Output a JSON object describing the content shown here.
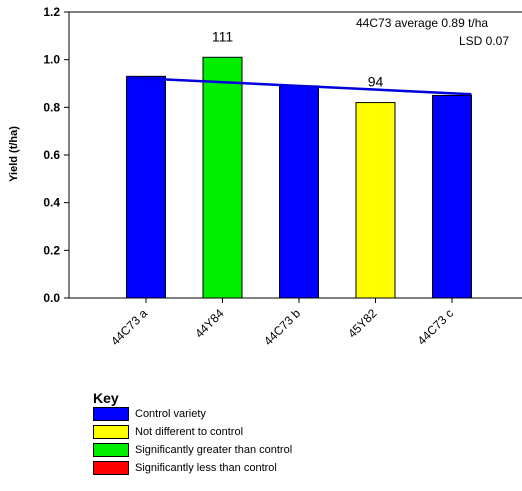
{
  "chart_data": {
    "type": "bar",
    "categories": [
      "44C73 a",
      "44Y84",
      "44C73 b",
      "45Y82",
      "44C73 c"
    ],
    "values": [
      0.93,
      1.01,
      0.89,
      0.82,
      0.85
    ],
    "bar_colors": [
      "#0000ff",
      "#00ee00",
      "#0000ff",
      "#ffff00",
      "#0000ff"
    ],
    "data_labels": [
      "",
      "111",
      "",
      "94",
      ""
    ],
    "trend_line": {
      "color": "#0000dd",
      "start": 0.925,
      "end": 0.855
    },
    "ylabel": "Yield (t/ha)",
    "ylim": [
      0,
      1.2
    ],
    "yticks": [
      "0.0",
      "0.2",
      "0.4",
      "0.6",
      "0.8",
      "1.0",
      "1.2"
    ],
    "annotations": [
      "44C73 average 0.89 t/ha",
      "LSD 0.07"
    ]
  },
  "key": {
    "title": "Key",
    "items": [
      {
        "color": "#0000ff",
        "label": "Control variety"
      },
      {
        "color": "#ffff00",
        "label": "Not different to control"
      },
      {
        "color": "#00ee00",
        "label": "Significantly greater than control"
      },
      {
        "color": "#ff0000",
        "label": "Significantly less than control"
      }
    ]
  }
}
